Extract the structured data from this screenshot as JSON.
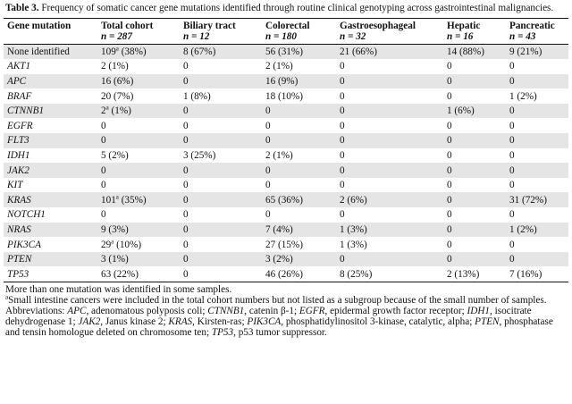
{
  "caption": {
    "label": "Table 3.",
    "text": "Frequency of somatic cancer gene mutations identified through routine clinical genotyping across gastrointestinal malignancies."
  },
  "columns": [
    {
      "name": "Gene mutation",
      "n": ""
    },
    {
      "name": "Total cohort",
      "n": "n = 287"
    },
    {
      "name": "Biliary tract",
      "n": "n = 12"
    },
    {
      "name": "Colorectal",
      "n": "n = 180"
    },
    {
      "name": "Gastroesophageal",
      "n": "n = 32"
    },
    {
      "name": "Hepatic",
      "n": "n = 16"
    },
    {
      "name": "Pancreatic",
      "n": "n = 43"
    }
  ],
  "rows": [
    {
      "gene": "None identified",
      "italic": false,
      "cells": [
        {
          "v": "109",
          "sup": "a",
          "r": " (38%)"
        },
        {
          "v": "8 (67%)"
        },
        {
          "v": "56 (31%)"
        },
        {
          "v": "21 (66%)"
        },
        {
          "v": "14 (88%)"
        },
        {
          "v": "9 (21%)"
        }
      ]
    },
    {
      "gene": "AKT1",
      "italic": true,
      "cells": [
        {
          "v": "2 (1%)"
        },
        {
          "v": "0"
        },
        {
          "v": "2 (1%)"
        },
        {
          "v": "0"
        },
        {
          "v": "0"
        },
        {
          "v": "0"
        }
      ]
    },
    {
      "gene": "APC",
      "italic": true,
      "cells": [
        {
          "v": "16 (6%)"
        },
        {
          "v": "0"
        },
        {
          "v": "16 (9%)"
        },
        {
          "v": "0"
        },
        {
          "v": "0"
        },
        {
          "v": "0"
        }
      ]
    },
    {
      "gene": "BRAF",
      "italic": true,
      "cells": [
        {
          "v": "20 (7%)"
        },
        {
          "v": "1 (8%)"
        },
        {
          "v": "18 (10%)"
        },
        {
          "v": "0"
        },
        {
          "v": "0"
        },
        {
          "v": "1 (2%)"
        }
      ]
    },
    {
      "gene": "CTNNB1",
      "italic": true,
      "cells": [
        {
          "v": "2",
          "sup": "a",
          "r": " (1%)"
        },
        {
          "v": "0"
        },
        {
          "v": "0"
        },
        {
          "v": "0"
        },
        {
          "v": "1 (6%)"
        },
        {
          "v": "0"
        }
      ]
    },
    {
      "gene": "EGFR",
      "italic": true,
      "cells": [
        {
          "v": "0"
        },
        {
          "v": "0"
        },
        {
          "v": "0"
        },
        {
          "v": "0"
        },
        {
          "v": "0"
        },
        {
          "v": "0"
        }
      ]
    },
    {
      "gene": "FLT3",
      "italic": true,
      "cells": [
        {
          "v": "0"
        },
        {
          "v": "0"
        },
        {
          "v": "0"
        },
        {
          "v": "0"
        },
        {
          "v": "0"
        },
        {
          "v": "0"
        }
      ]
    },
    {
      "gene": "IDH1",
      "italic": true,
      "cells": [
        {
          "v": "5 (2%)"
        },
        {
          "v": "3 (25%)"
        },
        {
          "v": "2 (1%)"
        },
        {
          "v": "0"
        },
        {
          "v": "0"
        },
        {
          "v": "0"
        }
      ]
    },
    {
      "gene": "JAK2",
      "italic": true,
      "cells": [
        {
          "v": "0"
        },
        {
          "v": "0"
        },
        {
          "v": "0"
        },
        {
          "v": "0"
        },
        {
          "v": "0"
        },
        {
          "v": "0"
        }
      ]
    },
    {
      "gene": "KIT",
      "italic": true,
      "cells": [
        {
          "v": "0"
        },
        {
          "v": "0"
        },
        {
          "v": "0"
        },
        {
          "v": "0"
        },
        {
          "v": "0"
        },
        {
          "v": "0"
        }
      ]
    },
    {
      "gene": "KRAS",
      "italic": true,
      "cells": [
        {
          "v": "101",
          "sup": "a",
          "r": " (35%)"
        },
        {
          "v": "0"
        },
        {
          "v": "65 (36%)"
        },
        {
          "v": "2 (6%)"
        },
        {
          "v": "0"
        },
        {
          "v": "31 (72%)"
        }
      ]
    },
    {
      "gene": "NOTCH1",
      "italic": true,
      "cells": [
        {
          "v": "0"
        },
        {
          "v": "0"
        },
        {
          "v": "0"
        },
        {
          "v": "0"
        },
        {
          "v": "0"
        },
        {
          "v": "0"
        }
      ]
    },
    {
      "gene": "NRAS",
      "italic": true,
      "cells": [
        {
          "v": "9 (3%)"
        },
        {
          "v": "0"
        },
        {
          "v": "7 (4%)"
        },
        {
          "v": "1 (3%)"
        },
        {
          "v": "0"
        },
        {
          "v": "1 (2%)"
        }
      ]
    },
    {
      "gene": "PIK3CA",
      "italic": true,
      "cells": [
        {
          "v": "29",
          "sup": "a",
          "r": " (10%)"
        },
        {
          "v": "0"
        },
        {
          "v": "27 (15%)"
        },
        {
          "v": "1 (3%)"
        },
        {
          "v": "0"
        },
        {
          "v": "0"
        }
      ]
    },
    {
      "gene": "PTEN",
      "italic": true,
      "cells": [
        {
          "v": "3 (1%)"
        },
        {
          "v": "0"
        },
        {
          "v": "3 (2%)"
        },
        {
          "v": "0"
        },
        {
          "v": "0"
        },
        {
          "v": "0"
        }
      ]
    },
    {
      "gene": "TP53",
      "italic": true,
      "cells": [
        {
          "v": "63 (22%)"
        },
        {
          "v": "0"
        },
        {
          "v": "46 (26%)"
        },
        {
          "v": "8 (25%)"
        },
        {
          "v": "2 (13%)"
        },
        {
          "v": "7 (16%)"
        }
      ]
    }
  ],
  "notes": {
    "note1": "More than one mutation was identified in some samples.",
    "note2_sup": "a",
    "note2": "Small intestine cancers were included in the total cohort numbers but not listed as a subgroup because of the small number of samples.",
    "abbrev_label": "Abbreviations: ",
    "abbreviations": [
      {
        "term": "APC",
        "def": ", adenomatous polyposis coli; "
      },
      {
        "term": "CTNNB1",
        "def": ", catenin β-1; "
      },
      {
        "term": "EGFR",
        "def": ", epidermal growth factor receptor; "
      },
      {
        "term": "IDH1",
        "def": ", isocitrate dehydrogenase 1; "
      },
      {
        "term": "JAK2",
        "def": ", Janus kinase 2; "
      },
      {
        "term": "KRAS",
        "def": ", Kirsten-ras; "
      },
      {
        "term": "PIK3CA",
        "def": ", phosphatidylinositol 3-kinase, catalytic, alpha; "
      },
      {
        "term": "PTEN",
        "def": ", phosphatase and tensin homologue deleted on chromosome ten; "
      },
      {
        "term": "TP53",
        "def": ", p53 tumor suppressor."
      }
    ]
  }
}
